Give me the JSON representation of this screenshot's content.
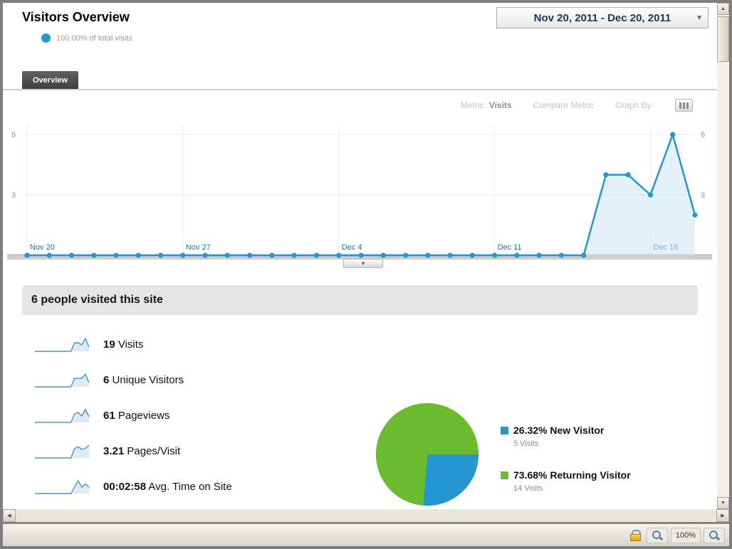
{
  "header": {
    "title": "Visitors Overview",
    "subtitle": "100.00% of total visits",
    "date_range": "Nov 20, 2011 - Dec 20, 2011"
  },
  "tab": {
    "overview_label": "Overview"
  },
  "controls": {
    "metric_label": "Metric:",
    "metric_value": "Visits",
    "compare_metric_label": "Compare Metric",
    "graph_by_label": "Graph By:"
  },
  "summary": {
    "headline": "6 people visited this site"
  },
  "stats": [
    {
      "value": "19",
      "label": "Visits",
      "spark": [
        0,
        0,
        0,
        0,
        0,
        0,
        0,
        0,
        0,
        0,
        0,
        4,
        4,
        3,
        6,
        2
      ]
    },
    {
      "value": "6",
      "label": "Unique Visitors",
      "spark": [
        0,
        0,
        0,
        0,
        0,
        0,
        0,
        0,
        0,
        0,
        0,
        2,
        2,
        2,
        3,
        1
      ]
    },
    {
      "value": "61",
      "label": "Pageviews",
      "spark": [
        0,
        0,
        0,
        0,
        0,
        0,
        0,
        0,
        0,
        0,
        0,
        12,
        14,
        9,
        18,
        8
      ]
    },
    {
      "value": "3.21",
      "label": "Pages/Visit",
      "spark": [
        0,
        0,
        0,
        0,
        0,
        0,
        0,
        0,
        0,
        0,
        0,
        3,
        3.5,
        2.7,
        3,
        4
      ]
    },
    {
      "value": "00:02:58",
      "label": "Avg. Time on Site",
      "spark": [
        0,
        0,
        0,
        0,
        0,
        0,
        0,
        0,
        0,
        0,
        0,
        2,
        4,
        2,
        3,
        2
      ]
    }
  ],
  "legend": [
    {
      "percent": "26.32%",
      "label": "New Visitor",
      "visits": "5 Visits",
      "color": "#2596cf"
    },
    {
      "percent": "73.68%",
      "label": "Returning Visitor",
      "visits": "14 Visits",
      "color": "#6abb2d"
    }
  ],
  "statusbar": {
    "zoom_level": "100%"
  },
  "colors": {
    "accent_blue": "#2596cf",
    "pie_green": "#6abb2d"
  },
  "icons": {
    "dropdown_caret": "▼",
    "slider_caret": "▾",
    "scroll_up": "▲",
    "scroll_down": "▼",
    "scroll_left": "◀",
    "scroll_right": "▶"
  },
  "chart_data": [
    {
      "type": "line",
      "title": "Visits over time",
      "x": [
        "Nov 20",
        "Nov 21",
        "Nov 22",
        "Nov 23",
        "Nov 24",
        "Nov 25",
        "Nov 26",
        "Nov 27",
        "Nov 28",
        "Nov 29",
        "Nov 30",
        "Dec 1",
        "Dec 2",
        "Dec 3",
        "Dec 4",
        "Dec 5",
        "Dec 6",
        "Dec 7",
        "Dec 8",
        "Dec 9",
        "Dec 10",
        "Dec 11",
        "Dec 12",
        "Dec 13",
        "Dec 14",
        "Dec 15",
        "Dec 16",
        "Dec 17",
        "Dec 18",
        "Dec 19",
        "Dec 20"
      ],
      "values": [
        0,
        0,
        0,
        0,
        0,
        0,
        0,
        0,
        0,
        0,
        0,
        0,
        0,
        0,
        0,
        0,
        0,
        0,
        0,
        0,
        0,
        0,
        0,
        0,
        0,
        0,
        4,
        4,
        3,
        6,
        2
      ],
      "yticks": [
        3,
        6
      ],
      "ylim": [
        0,
        6.5
      ],
      "xtick_idx": [
        0,
        7,
        14,
        21,
        28
      ],
      "xtick_labels": [
        "Nov 20",
        "Nov 27",
        "Dec 4",
        "Dec 11",
        "Dec 18"
      ],
      "line_color": "#2596cf",
      "fill_color": "#cfe6f4",
      "grid": true,
      "legend_position": "none"
    },
    {
      "type": "pie",
      "title": "New vs Returning Visitors",
      "slices": [
        {
          "label": "New Visitor",
          "value": 26.32,
          "visits": 5,
          "color": "#2596cf"
        },
        {
          "label": "Returning Visitor",
          "value": 73.68,
          "visits": 14,
          "color": "#6abb2d"
        }
      ],
      "start_angle_deg": 90
    }
  ]
}
